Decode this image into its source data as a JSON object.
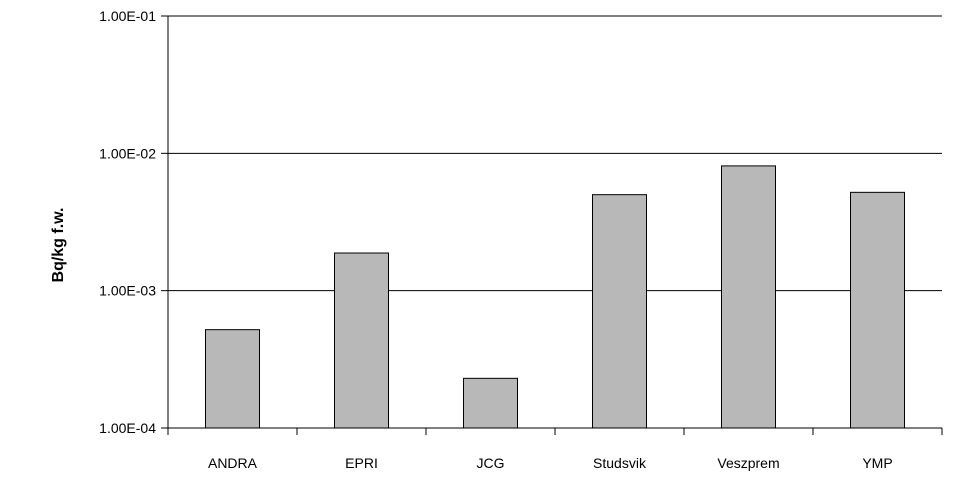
{
  "chart_data": {
    "type": "bar",
    "title": "",
    "xlabel": "",
    "ylabel": "Bq/kg f.w.",
    "yscale": "log",
    "ylim": [
      0.0001,
      0.1
    ],
    "yticks": [
      0.0001,
      0.001,
      0.01,
      0.1
    ],
    "ytick_labels": [
      "1.00E-04",
      "1.00E-03",
      "1.00E-02",
      "1.00E-01"
    ],
    "categories": [
      "ANDRA",
      "EPRI",
      "JCG",
      "Studsvik",
      "Veszprem",
      "YMP"
    ],
    "values": [
      0.00052,
      0.00188,
      0.00023,
      0.005,
      0.0081,
      0.0052
    ],
    "bar_color": "#b8b8b8",
    "bar_edge_color": "#000000",
    "grid": true,
    "legend": "none"
  }
}
